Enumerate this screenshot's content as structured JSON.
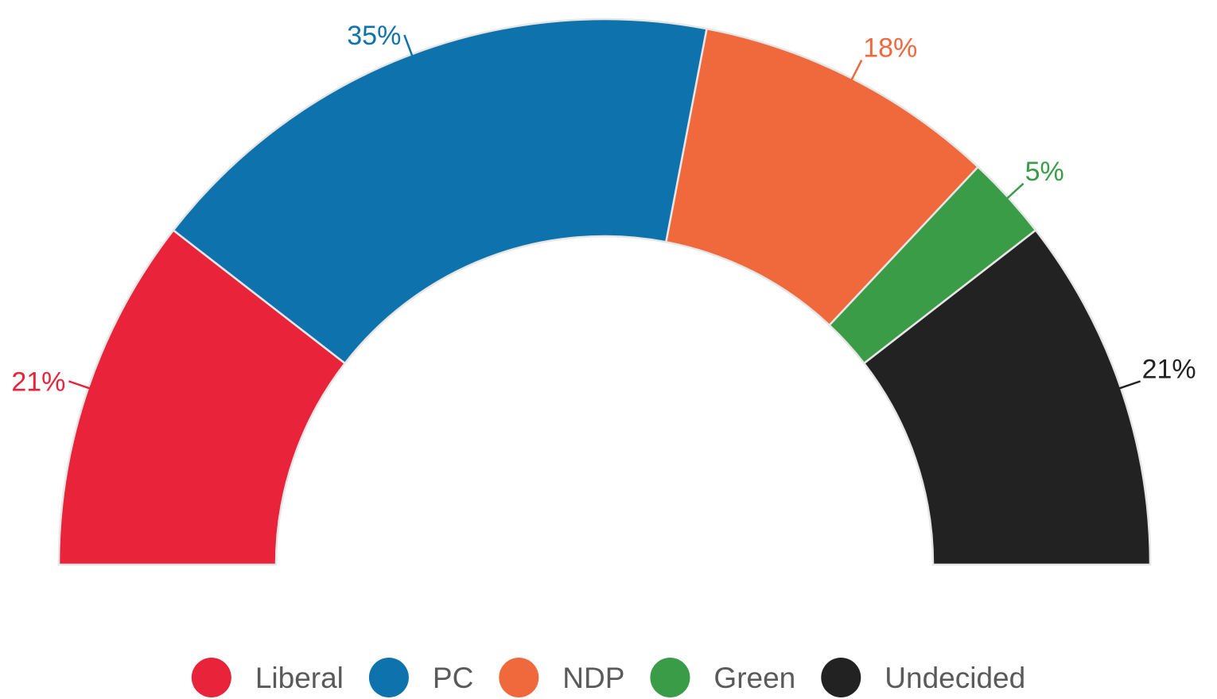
{
  "chart_data": {
    "type": "pie",
    "variant": "half-donut",
    "categories": [
      "Liberal",
      "PC",
      "NDP",
      "Green",
      "Undecided"
    ],
    "values": [
      21,
      35,
      18,
      5,
      21
    ],
    "value_labels": [
      "21%",
      "35%",
      "18%",
      "5%",
      "21%"
    ],
    "colors": [
      "#e8233a",
      "#0e73ad",
      "#f0693c",
      "#3a9c47",
      "#222222"
    ],
    "legend": {
      "placement": "bottom",
      "entries": [
        "Liberal",
        "PC",
        "NDP",
        "Green",
        "Undecided"
      ]
    }
  }
}
